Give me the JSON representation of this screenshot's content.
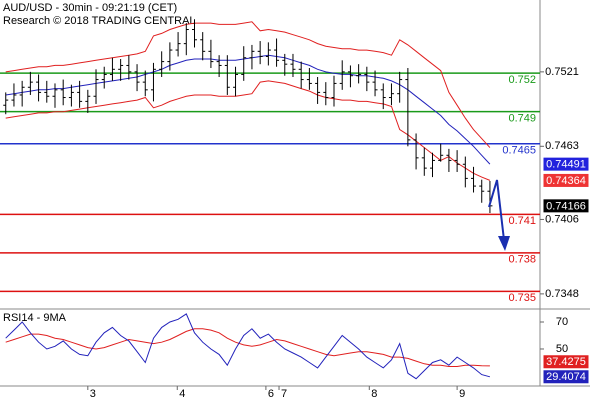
{
  "chart_data": [
    {
      "type": "ohlc",
      "title": "AUD/USD - 30min - 09:21:19 (CET)",
      "subtitle": "Research © 2018 TRADING CENTRAL",
      "xlim": [
        -0.7,
        65.1
      ],
      "ylim": [
        0.7337,
        0.7577
      ],
      "yticks": [
        0.7348,
        0.7406,
        0.7463,
        0.7521
      ],
      "color": "#000000",
      "open": [
        0.7495,
        0.7499,
        0.7503,
        0.7509,
        0.7513,
        0.7505,
        0.7502,
        0.7507,
        0.7501,
        0.7505,
        0.7498,
        0.7502,
        0.7515,
        0.7519,
        0.7523,
        0.7526,
        0.7521,
        0.7513,
        0.7507,
        0.7523,
        0.7529,
        0.7538,
        0.7543,
        0.7554,
        0.7546,
        0.7537,
        0.7529,
        0.7526,
        0.7509,
        0.7519,
        0.7532,
        0.7537,
        0.7533,
        0.7538,
        0.753,
        0.7527,
        0.7523,
        0.7515,
        0.7512,
        0.7505,
        0.7501,
        0.7512,
        0.7521,
        0.7518,
        0.7519,
        0.7513,
        0.7507,
        0.7501,
        0.7504,
        0.7515,
        0.7468,
        0.7454,
        0.7446,
        0.7452,
        0.7456,
        0.7452,
        0.7449,
        0.7438,
        0.7432,
        0.7428
      ],
      "high": [
        0.7505,
        0.7512,
        0.7514,
        0.7521,
        0.7519,
        0.7514,
        0.7512,
        0.7515,
        0.7511,
        0.7514,
        0.7507,
        0.7523,
        0.7525,
        0.7532,
        0.7531,
        0.7534,
        0.7527,
        0.7522,
        0.7528,
        0.7537,
        0.7544,
        0.7552,
        0.7559,
        0.7562,
        0.7552,
        0.7546,
        0.7534,
        0.7534,
        0.7525,
        0.7541,
        0.7542,
        0.7545,
        0.7544,
        0.7547,
        0.7535,
        0.7535,
        0.7529,
        0.7524,
        0.7517,
        0.7513,
        0.7518,
        0.753,
        0.7526,
        0.7527,
        0.7525,
        0.7522,
        0.7512,
        0.7512,
        0.7521,
        0.7524,
        0.7473,
        0.7462,
        0.7458,
        0.7465,
        0.7461,
        0.746,
        0.7455,
        0.7447,
        0.7437,
        0.7436
      ],
      "low": [
        0.7488,
        0.7494,
        0.7494,
        0.7503,
        0.7498,
        0.7497,
        0.7493,
        0.7495,
        0.7494,
        0.7493,
        0.7489,
        0.7496,
        0.7508,
        0.7514,
        0.7514,
        0.7515,
        0.7506,
        0.7502,
        0.7498,
        0.7517,
        0.7522,
        0.7533,
        0.7534,
        0.754,
        0.753,
        0.7524,
        0.7517,
        0.7503,
        0.7502,
        0.7514,
        0.7523,
        0.7527,
        0.7526,
        0.7525,
        0.7518,
        0.7517,
        0.7508,
        0.7507,
        0.7496,
        0.7495,
        0.7494,
        0.7507,
        0.7509,
        0.7512,
        0.7506,
        0.7502,
        0.7492,
        0.7495,
        0.7497,
        0.7463,
        0.7445,
        0.744,
        0.7439,
        0.7451,
        0.7443,
        0.7443,
        0.7431,
        0.7427,
        0.7419,
        0.7411
      ],
      "close": [
        0.7499,
        0.7503,
        0.7509,
        0.7513,
        0.7505,
        0.7502,
        0.7507,
        0.7501,
        0.7505,
        0.7498,
        0.7502,
        0.7515,
        0.7519,
        0.7523,
        0.7526,
        0.7521,
        0.7513,
        0.7507,
        0.7523,
        0.7529,
        0.7538,
        0.7543,
        0.7554,
        0.7546,
        0.7537,
        0.7529,
        0.7526,
        0.7509,
        0.7519,
        0.7532,
        0.7537,
        0.7533,
        0.7538,
        0.753,
        0.7527,
        0.7523,
        0.7515,
        0.7512,
        0.7505,
        0.7501,
        0.7512,
        0.7521,
        0.7518,
        0.7519,
        0.7513,
        0.7507,
        0.7501,
        0.7504,
        0.7515,
        0.7468,
        0.7454,
        0.7446,
        0.7452,
        0.7456,
        0.7452,
        0.7449,
        0.7438,
        0.7432,
        0.7428,
        0.74166
      ],
      "series": [
        {
          "color": "#e02020",
          "values": [
            0.7521,
            0.7522,
            0.7523,
            0.7524,
            0.7525,
            0.7525,
            0.7526,
            0.7526,
            0.7527,
            0.7528,
            0.7529,
            0.753,
            0.7531,
            0.7532,
            0.7533,
            0.7534,
            0.7535,
            0.7537,
            0.7549,
            0.7551,
            0.7554,
            0.7556,
            0.7558,
            0.7559,
            0.7559,
            0.7559,
            0.7558,
            0.7558,
            0.7558,
            0.7559,
            0.756,
            0.7553,
            0.7554,
            0.7553,
            0.7552,
            0.755,
            0.7548,
            0.7546,
            0.7543,
            0.7541,
            0.754,
            0.7539,
            0.7539,
            0.7538,
            0.7538,
            0.7537,
            0.7536,
            0.7534,
            0.7546,
            0.7542,
            0.7537,
            0.7532,
            0.7527,
            0.7522,
            0.7505,
            0.7495,
            0.7485,
            0.7476,
            0.7469,
            0.7462
          ]
        },
        {
          "color": "#2222bb",
          "values": [
            0.7503,
            0.7504,
            0.7505,
            0.7506,
            0.7507,
            0.7507,
            0.7508,
            0.7508,
            0.7509,
            0.751,
            0.7511,
            0.7512,
            0.7513,
            0.7514,
            0.7515,
            0.7516,
            0.7517,
            0.7519,
            0.7521,
            0.7523,
            0.7526,
            0.7528,
            0.753,
            0.7531,
            0.7531,
            0.7531,
            0.753,
            0.753,
            0.753,
            0.7531,
            0.7532,
            0.7533,
            0.7534,
            0.7533,
            0.7532,
            0.753,
            0.7528,
            0.7526,
            0.7523,
            0.7521,
            0.752,
            0.7519,
            0.7519,
            0.7518,
            0.7518,
            0.7517,
            0.7516,
            0.7514,
            0.7511,
            0.7507,
            0.7502,
            0.7497,
            0.7492,
            0.7487,
            0.748,
            0.7475,
            0.7469,
            0.7463,
            0.7456,
            0.74491
          ]
        },
        {
          "color": "#e02020",
          "values": [
            0.7485,
            0.7486,
            0.7487,
            0.7488,
            0.7489,
            0.7489,
            0.749,
            0.749,
            0.7491,
            0.7492,
            0.7493,
            0.7494,
            0.7495,
            0.7496,
            0.7497,
            0.7498,
            0.7499,
            0.7501,
            0.7493,
            0.7495,
            0.7498,
            0.75,
            0.7502,
            0.7503,
            0.7503,
            0.7503,
            0.7502,
            0.7502,
            0.7502,
            0.7503,
            0.7504,
            0.7513,
            0.7514,
            0.7513,
            0.7512,
            0.751,
            0.7508,
            0.7506,
            0.7503,
            0.7501,
            0.75,
            0.7499,
            0.7499,
            0.7498,
            0.7498,
            0.7497,
            0.7496,
            0.7494,
            0.7476,
            0.7472,
            0.7467,
            0.7462,
            0.7457,
            0.7452,
            0.7455,
            0.745,
            0.7446,
            0.7442,
            0.7439,
            0.74364
          ]
        }
      ],
      "badge_colors": [
        "#2222dd",
        "#ee3333",
        "#000000"
      ],
      "levels": [
        {
          "value": 0.752,
          "color": "#1a9a1a"
        },
        {
          "value": 0.749,
          "color": "#1a9a1a"
        },
        {
          "value": 0.7465,
          "color": "#2233cc"
        },
        {
          "value": 0.741,
          "color": "#dd1111"
        },
        {
          "value": 0.738,
          "color": "#dd1111"
        },
        {
          "value": 0.735,
          "color": "#dd1111"
        }
      ]
    },
    {
      "type": "line",
      "title": "RSI14 - 9MA",
      "xlim": [
        -0.7,
        65.1
      ],
      "ylim": [
        23.3,
        78.9
      ],
      "yticks": [
        50,
        70
      ],
      "xticks": [
        {
          "value": 10,
          "label": "3"
        },
        {
          "value": 20.9,
          "label": "4"
        },
        {
          "value": 31.7,
          "label": "6"
        },
        {
          "value": 33.3,
          "label": "7"
        },
        {
          "value": 44.3,
          "label": "8"
        },
        {
          "value": 55,
          "label": "9"
        }
      ],
      "series": [
        {
          "color": "#e02020",
          "values": [
            55,
            57,
            59,
            61,
            61,
            60,
            58,
            57,
            55,
            53,
            51,
            50,
            51,
            53,
            55,
            57,
            56,
            55,
            54,
            55,
            57,
            60,
            63,
            65,
            65,
            64,
            62,
            58,
            55,
            53,
            52,
            53,
            55,
            57,
            56,
            54,
            52,
            50,
            48,
            46,
            45,
            46,
            47,
            48,
            48,
            47,
            46,
            44,
            44,
            43,
            41,
            39,
            38,
            38,
            37,
            37,
            38,
            38,
            37.6,
            37.4275
          ]
        },
        {
          "color": "#2222bb",
          "values": [
            58,
            64,
            70,
            62,
            55,
            50,
            52,
            56,
            50,
            46,
            45,
            55,
            62,
            66,
            60,
            56,
            48,
            40,
            58,
            66,
            70,
            72,
            76,
            62,
            55,
            50,
            46,
            38,
            50,
            60,
            65,
            58,
            61,
            55,
            50,
            47,
            44,
            40,
            36,
            44,
            52,
            60,
            55,
            50,
            44,
            40,
            36,
            42,
            54,
            32,
            28,
            34,
            40,
            42,
            38,
            44,
            40,
            36,
            31,
            29.4074
          ]
        }
      ]
    }
  ]
}
